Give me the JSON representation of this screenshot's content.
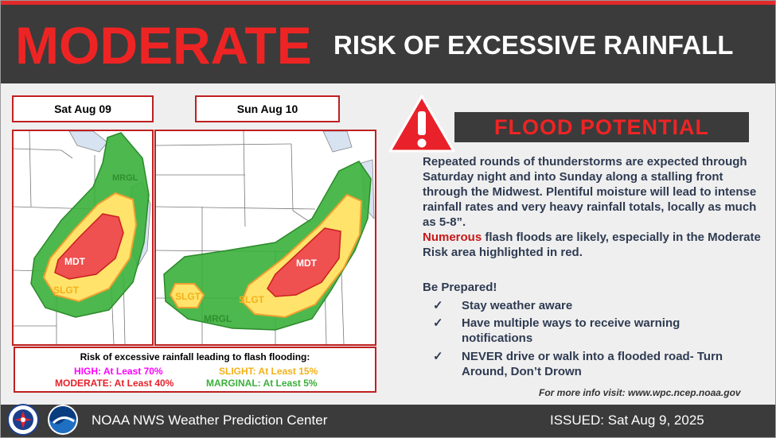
{
  "header": {
    "level": "MODERATE",
    "subtitle": "RISK OF EXCESSIVE RAINFALL"
  },
  "maps": [
    {
      "date": "Sat Aug 09",
      "labels": {
        "mrgl": "MRGL",
        "mdt": "MDT",
        "slgt": "SLGT"
      }
    },
    {
      "date": "Sun Aug 10",
      "labels": {
        "slgt_west": "SLGT",
        "mrgl": "MRGL",
        "slgt": "SLGT",
        "mdt": "MDT"
      }
    }
  ],
  "legend": {
    "title": "Risk of excessive rainfall leading to flash flooding:",
    "high": "HIGH: At Least 70%",
    "moderate": "MODERATE: At Least 40%",
    "slight": "SLIGHT: At Least 15%",
    "marginal": "MARGINAL: At Least 5%"
  },
  "flood": {
    "title": "FLOOD POTENTIAL",
    "paragraph": "Repeated rounds of thunderstorms are expected through Saturday night and into Sunday along a stalling front through the Midwest. Plentiful moisture will lead to intense rainfall rates and very heavy rainfall totals, locally as much as 5-8”.",
    "highlight": "Numerous",
    "paragraph2": " flash floods are likely, especially in the Moderate Risk area highlighted in red."
  },
  "prepared": {
    "title": "Be Prepared!",
    "check": "✓",
    "items": [
      "Stay weather aware",
      "Have multiple ways to receive warning notifications",
      "NEVER drive or walk into a flooded road- Turn Around, Don’t Drown"
    ]
  },
  "more_info": "For more info visit: www.wpc.ncep.noaa.gov",
  "footer": {
    "center": "NOAA NWS Weather Prediction Center",
    "issued": "ISSUED: Sat Aug 9, 2025"
  },
  "colors": {
    "high": "#ff00ff",
    "moderate": "#e8212a",
    "slight": "#ffcc33",
    "marginal": "#3ab03a",
    "dark": "#3b3b3b"
  }
}
